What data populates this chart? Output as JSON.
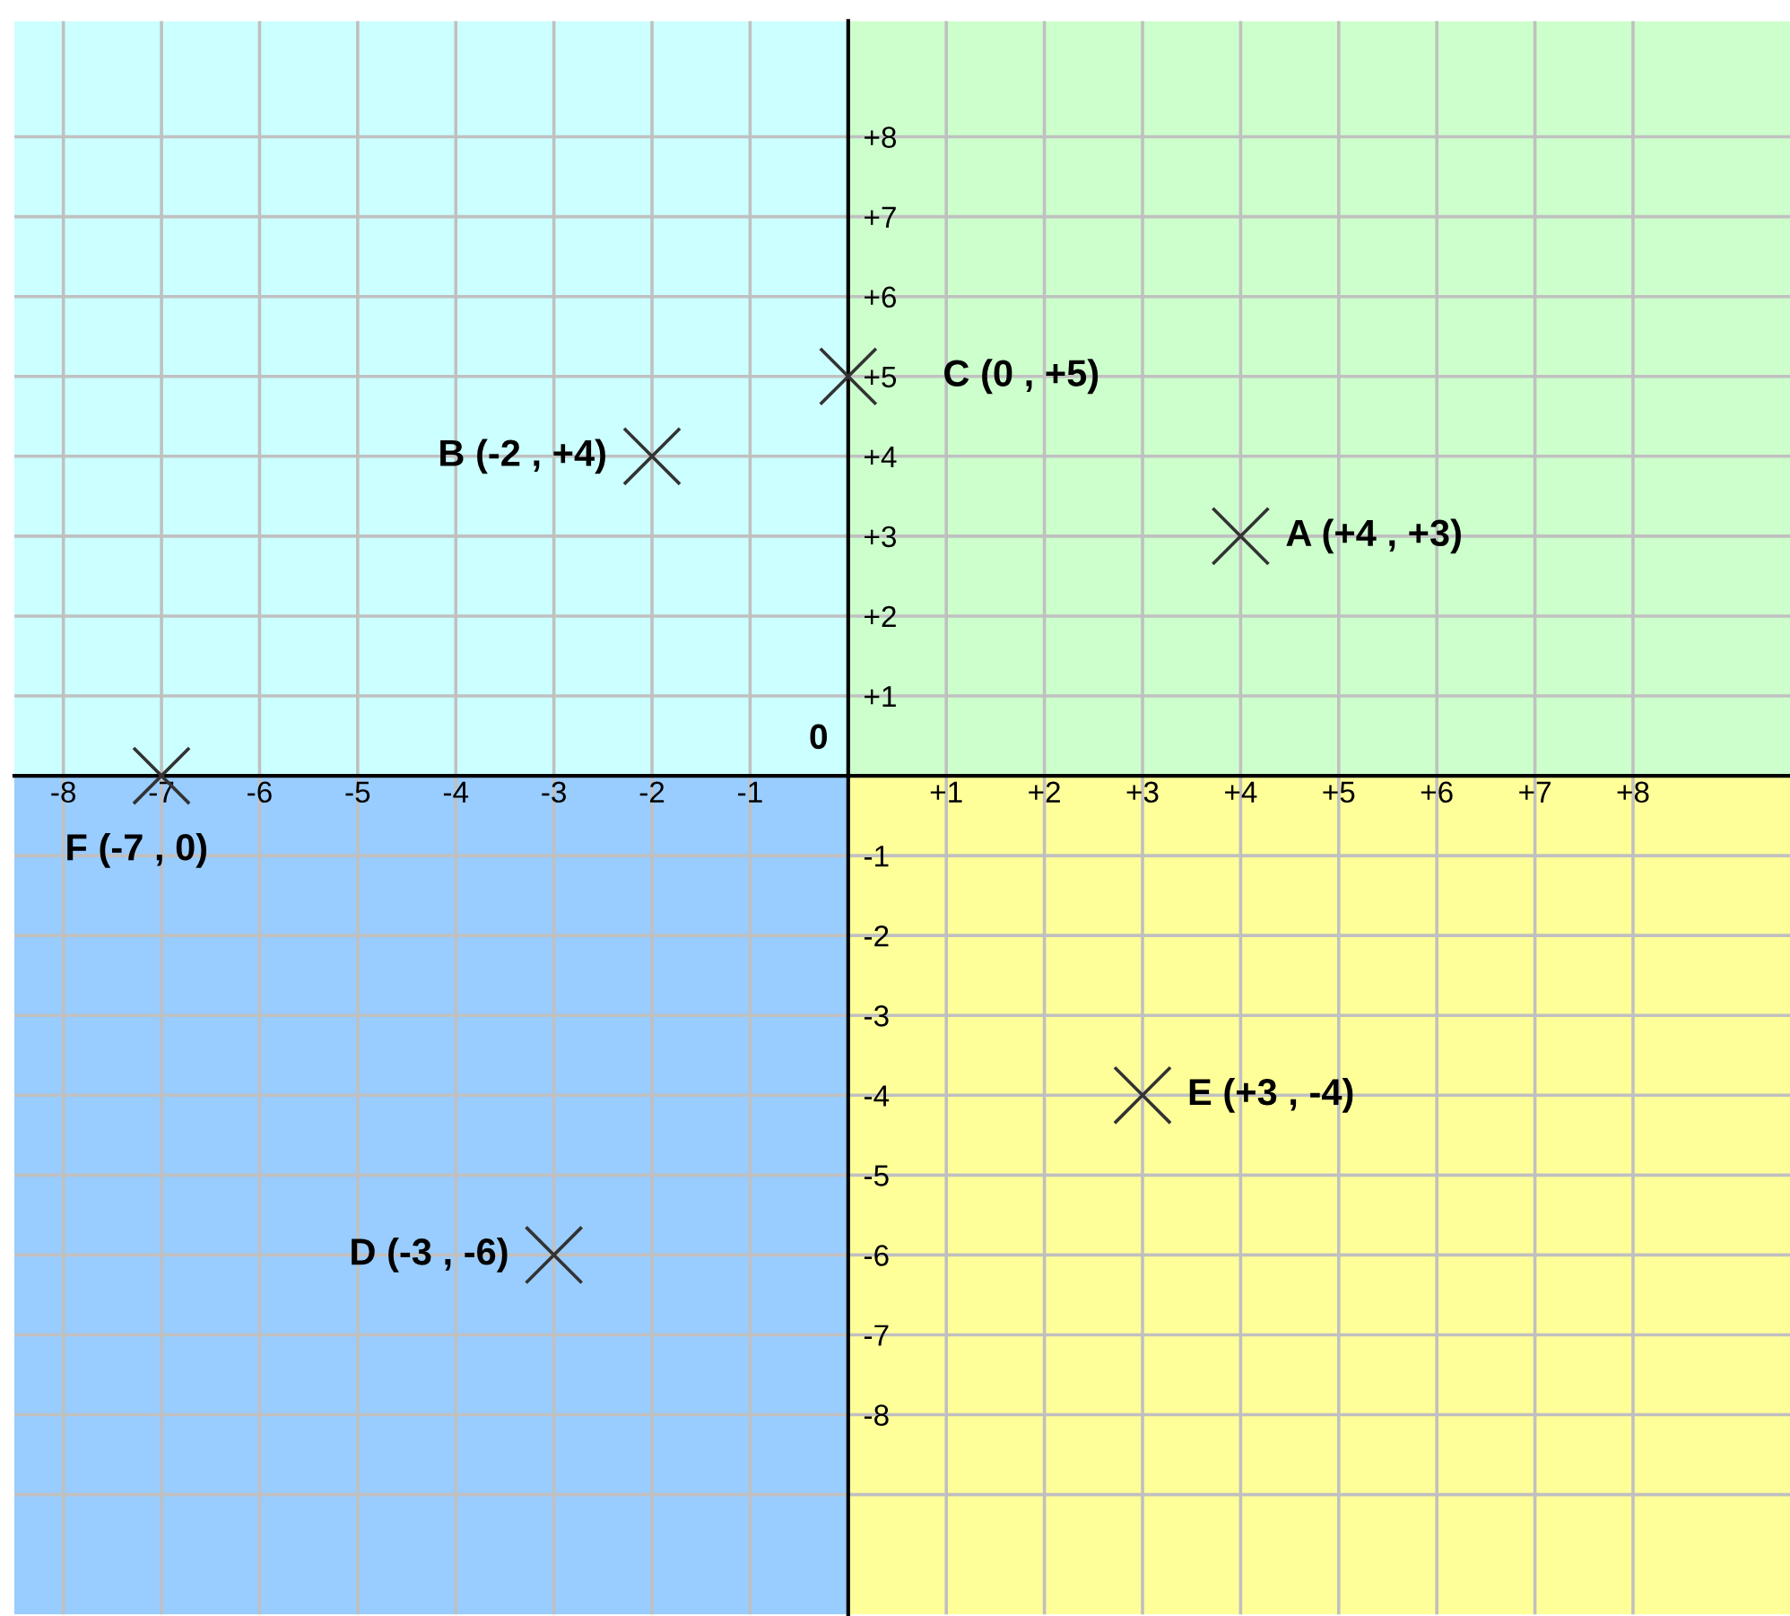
{
  "chart_data": {
    "type": "scatter",
    "x": [
      4,
      -2,
      0,
      -3,
      3,
      -7
    ],
    "series": [
      {
        "color": "#333333",
        "values": [
          3,
          4,
          5,
          -6,
          -4,
          0
        ]
      }
    ],
    "marker": "cross",
    "annotations": [
      {
        "text": "A (+4 , +3)",
        "x": 4,
        "y": 3
      },
      {
        "text": "B (-2 , +4)",
        "x": -2,
        "y": 4
      },
      {
        "text": "C (0 , +5)",
        "x": 0,
        "y": 5
      },
      {
        "text": "D (-3 , -6)",
        "x": -3,
        "y": -6
      },
      {
        "text": "E (+3 , -4)",
        "x": 3,
        "y": -4
      },
      {
        "text": "F (-7 , 0)",
        "x": -7,
        "y": 0
      },
      "0"
    ],
    "xlim": [
      -8.5,
      9.6
    ],
    "ylim": [
      -10.5,
      9.45
    ],
    "xticks": [
      {
        "value": -8,
        "label": "-8"
      },
      {
        "value": -7,
        "label": "-7"
      },
      {
        "value": -6,
        "label": "-6"
      },
      {
        "value": -5,
        "label": "-5"
      },
      {
        "value": -4,
        "label": "-4"
      },
      {
        "value": -3,
        "label": "-3"
      },
      {
        "value": -2,
        "label": "-2"
      },
      {
        "value": -1,
        "label": "-1"
      },
      {
        "value": 1,
        "label": "+1"
      },
      {
        "value": 2,
        "label": "+2"
      },
      {
        "value": 3,
        "label": "+3"
      },
      {
        "value": 4,
        "label": "+4"
      },
      {
        "value": 5,
        "label": "+5"
      },
      {
        "value": 6,
        "label": "+6"
      },
      {
        "value": 7,
        "label": "+7"
      },
      {
        "value": 8,
        "label": "+8"
      }
    ],
    "yticks": [
      {
        "value": -9,
        "label": null
      },
      {
        "value": -8,
        "label": "-8"
      },
      {
        "value": -7,
        "label": "-7"
      },
      {
        "value": -6,
        "label": "-6"
      },
      {
        "value": -5,
        "label": "-5"
      },
      {
        "value": -4,
        "label": "-4"
      },
      {
        "value": -3,
        "label": "-3"
      },
      {
        "value": -2,
        "label": "-2"
      },
      {
        "value": -1,
        "label": "-1"
      },
      {
        "value": 1,
        "label": "+1"
      },
      {
        "value": 2,
        "label": "+2"
      },
      {
        "value": 3,
        "label": "+3"
      },
      {
        "value": 4,
        "label": "+4"
      },
      {
        "value": 5,
        "label": "+5"
      },
      {
        "value": 6,
        "label": "+6"
      },
      {
        "value": 7,
        "label": "+7"
      },
      {
        "value": 8,
        "label": "+8"
      }
    ],
    "grid": true
  }
}
